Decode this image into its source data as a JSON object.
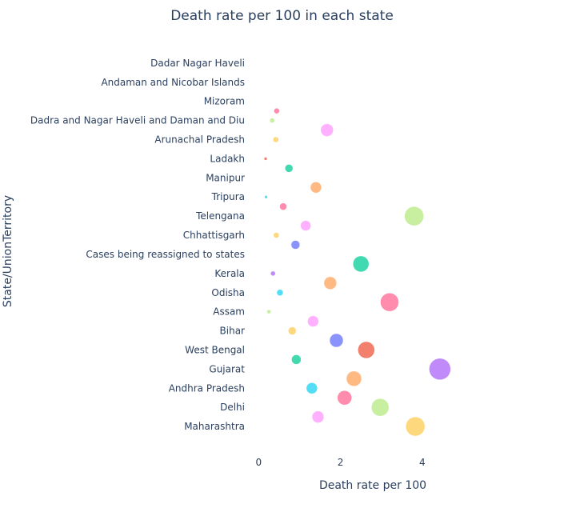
{
  "chart_data": {
    "type": "scatter",
    "title": "Death rate per 100 in each state",
    "xlabel": "Death rate per 100",
    "ylabel": "State/UnionTerritory",
    "xlim": [
      -0.3,
      5.9
    ],
    "xticks": [
      0,
      2,
      4
    ],
    "grid": false,
    "legend": "none",
    "categories": [
      "Maharashtra",
      "Delhi",
      "Andhra Pradesh",
      "Gujarat",
      "West Bengal",
      "Bihar",
      "Assam",
      "Odisha",
      "Kerala",
      "Cases being reassigned to states",
      "Chhattisgarh",
      "Telengana",
      "Tripura",
      "Manipur",
      "Ladakh",
      "Arunachal Pradesh",
      "Dadra and Nagar Haveli and Daman and Diu",
      "Mizoram",
      "Andaman and Nicobar Islands",
      "Dadar Nagar Haveli"
    ],
    "points": [
      {
        "x": 3.83,
        "y": 0.0,
        "color": "#FECB52",
        "r": 12
      },
      {
        "x": 1.45,
        "y": 0.5,
        "color": "#FF97FF",
        "r": 7.5
      },
      {
        "x": 2.97,
        "y": 1.0,
        "color": "#B6E880",
        "r": 11
      },
      {
        "x": 2.1,
        "y": 1.5,
        "color": "#FF6692",
        "r": 9
      },
      {
        "x": 1.3,
        "y": 2.0,
        "color": "#19D3F3",
        "r": 7
      },
      {
        "x": 2.33,
        "y": 2.5,
        "color": "#FFA15A",
        "r": 9.5
      },
      {
        "x": 4.43,
        "y": 3.0,
        "color": "#AB63FA",
        "r": 13.5
      },
      {
        "x": 0.92,
        "y": 3.5,
        "color": "#00CC96",
        "r": 6
      },
      {
        "x": 2.63,
        "y": 4.0,
        "color": "#EF553B",
        "r": 10.5
      },
      {
        "x": 1.9,
        "y": 4.5,
        "color": "#636EFA",
        "r": 8.5
      },
      {
        "x": 0.82,
        "y": 5.0,
        "color": "#FECB52",
        "r": 5
      },
      {
        "x": 1.33,
        "y": 5.5,
        "color": "#FF97FF",
        "r": 7
      },
      {
        "x": 0.25,
        "y": 6.0,
        "color": "#B6E880",
        "r": 2.5
      },
      {
        "x": 3.2,
        "y": 6.5,
        "color": "#FF6692",
        "r": 11.5
      },
      {
        "x": 0.52,
        "y": 7.0,
        "color": "#19D3F3",
        "r": 4
      },
      {
        "x": 1.75,
        "y": 7.5,
        "color": "#FFA15A",
        "r": 8
      },
      {
        "x": 0.35,
        "y": 8.0,
        "color": "#AB63FA",
        "r": 3
      },
      {
        "x": 2.5,
        "y": 8.5,
        "color": "#00CC96",
        "r": 10
      },
      {
        "x": 0.9,
        "y": 9.5,
        "color": "#636EFA",
        "r": 5.5
      },
      {
        "x": 0.43,
        "y": 10.0,
        "color": "#FECB52",
        "r": 3.5
      },
      {
        "x": 1.15,
        "y": 10.5,
        "color": "#FF97FF",
        "r": 6.5
      },
      {
        "x": 3.8,
        "y": 11.0,
        "color": "#B6E880",
        "r": 12
      },
      {
        "x": 0.6,
        "y": 11.5,
        "color": "#FF6692",
        "r": 4.5
      },
      {
        "x": 0.18,
        "y": 12.0,
        "color": "#19D3F3",
        "r": 2
      },
      {
        "x": 1.4,
        "y": 12.5,
        "color": "#FFA15A",
        "r": 7
      },
      {
        "x": 0.74,
        "y": 13.5,
        "color": "#00CC96",
        "r": 5
      },
      {
        "x": 0.17,
        "y": 14.0,
        "color": "#EF553B",
        "r": 2
      },
      {
        "x": 0.42,
        "y": 15.0,
        "color": "#FECB52",
        "r": 3.5
      },
      {
        "x": 1.67,
        "y": 15.5,
        "color": "#FF97FF",
        "r": 8
      },
      {
        "x": 0.33,
        "y": 16.0,
        "color": "#B6E880",
        "r": 3
      },
      {
        "x": 0.44,
        "y": 16.5,
        "color": "#FF6692",
        "r": 3.5
      }
    ]
  }
}
